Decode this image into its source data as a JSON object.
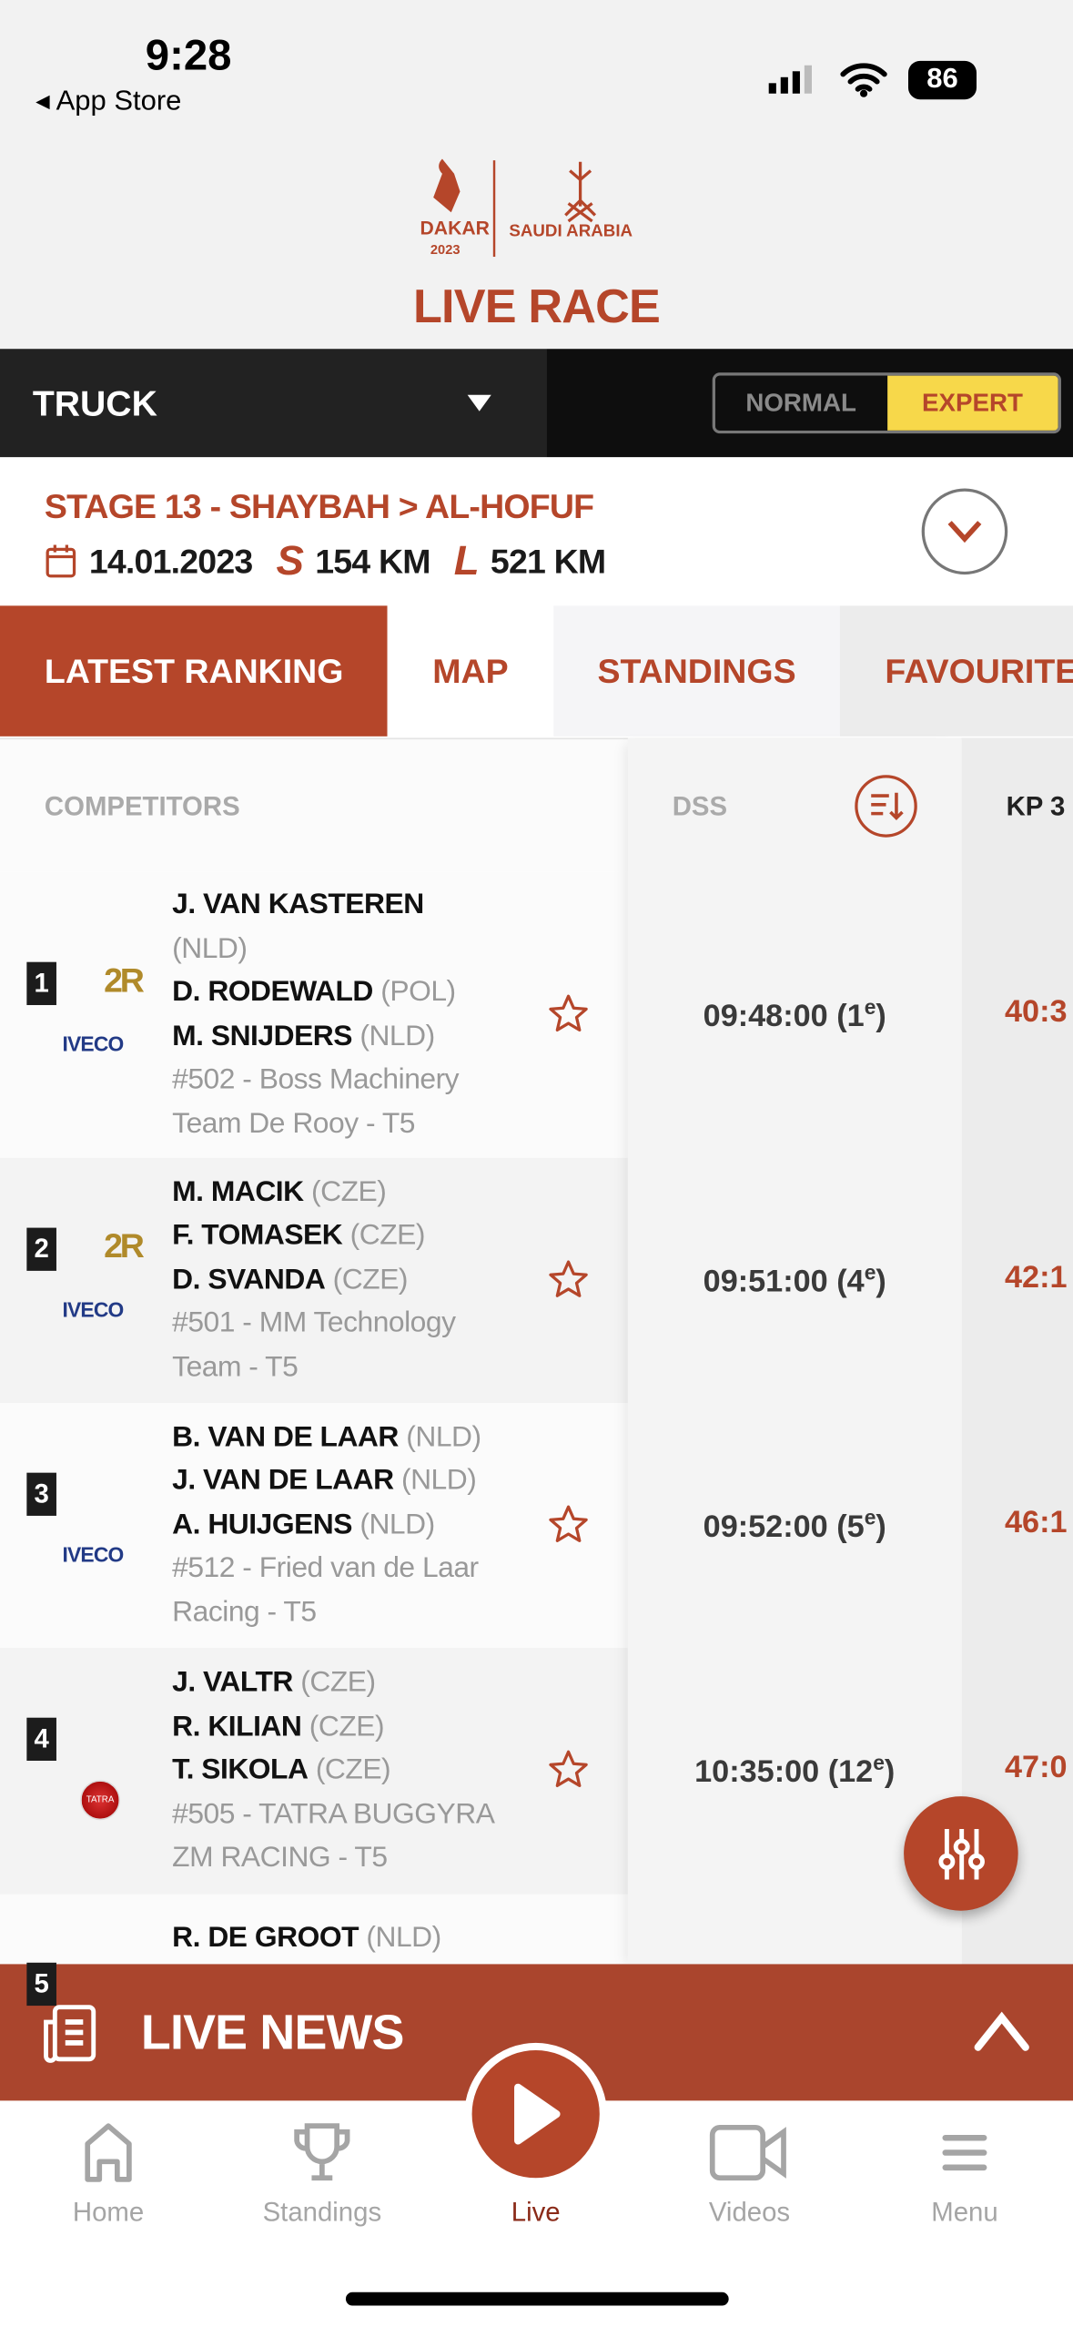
{
  "status_bar": {
    "time": "9:28",
    "back_label": "◂ App Store",
    "battery": "86"
  },
  "header": {
    "logo_text": "DAKAR 2023",
    "logo_country": "SAUDI ARABIA",
    "title": "LIVE RACE"
  },
  "category": {
    "selected": "TRUCK",
    "modes": [
      "NORMAL",
      "EXPERT"
    ],
    "active_mode": "EXPERT"
  },
  "stage": {
    "label": "STAGE 13",
    "route": " - SHAYBAH > AL-HOFUF",
    "date": "14.01.2023",
    "special_prefix": "S",
    "special": "154 KM",
    "liaison_prefix": "L",
    "liaison": "521 KM"
  },
  "tabs": [
    {
      "label": "LATEST RANKING",
      "active": true
    },
    {
      "label": "MAP"
    },
    {
      "label": "STANDINGS"
    },
    {
      "label": "FAVOURITES"
    }
  ],
  "table": {
    "headers": {
      "competitors": "COMPETITORS",
      "dss": "DSS",
      "kp": "KP 3"
    },
    "rows": [
      {
        "rank": "1",
        "brand": "iveco",
        "badge": "2R",
        "crew": [
          [
            "J. VAN KASTEREN",
            "(NLD)"
          ],
          [
            "D. RODEWALD",
            "(POL)"
          ],
          [
            "M. SNIJDERS",
            "(NLD)"
          ]
        ],
        "team": "#502 - Boss Machinery Team De Rooy - T5",
        "dss": "09:48:00 (1",
        "dss_pos": "e",
        "kp": "40:3"
      },
      {
        "rank": "2",
        "brand": "iveco",
        "badge": "2R",
        "crew": [
          [
            "M. MACIK",
            "(CZE)"
          ],
          [
            "F. TOMASEK",
            "(CZE)"
          ],
          [
            "D. SVANDA",
            "(CZE)"
          ]
        ],
        "team": "#501 - MM Technology Team - T5",
        "dss": "09:51:00 (4",
        "dss_pos": "e",
        "kp": "42:1"
      },
      {
        "rank": "3",
        "brand": "iveco",
        "badge": "",
        "crew": [
          [
            "B. VAN DE LAAR",
            "(NLD)"
          ],
          [
            "J. VAN DE LAAR",
            "(NLD)"
          ],
          [
            "A. HUIJGENS",
            "(NLD)"
          ]
        ],
        "team": "#512 - Fried van de Laar Racing - T5",
        "dss": "09:52:00 (5",
        "dss_pos": "e",
        "kp": "46:1"
      },
      {
        "rank": "4",
        "brand": "tatra",
        "badge": "",
        "crew": [
          [
            "J. VALTR",
            "(CZE)"
          ],
          [
            "R. KILIAN",
            "(CZE)"
          ],
          [
            "T. SIKOLA",
            "(CZE)"
          ]
        ],
        "team": "#505 - TATRA BUGGYRA ZM RACING - T5",
        "dss": "10:35:00 (12",
        "dss_pos": "e",
        "kp": "47:0"
      },
      {
        "rank": "5",
        "brand": "",
        "badge": "",
        "crew": [
          [
            "R. DE GROOT",
            "(NLD)"
          ]
        ],
        "team": "",
        "dss": "",
        "dss_pos": "",
        "kp": ""
      }
    ]
  },
  "live_news": {
    "label": "LIVE NEWS"
  },
  "nav": [
    {
      "label": "Home",
      "icon": "home-icon"
    },
    {
      "label": "Standings",
      "icon": "trophy-icon"
    },
    {
      "label": "Live",
      "icon": "play-icon",
      "active": true
    },
    {
      "label": "Videos",
      "icon": "video-icon"
    },
    {
      "label": "Menu",
      "icon": "menu-icon"
    }
  ],
  "colors": {
    "accent": "#b5462a",
    "expert": "#f7d84a",
    "dark": "#222222"
  }
}
